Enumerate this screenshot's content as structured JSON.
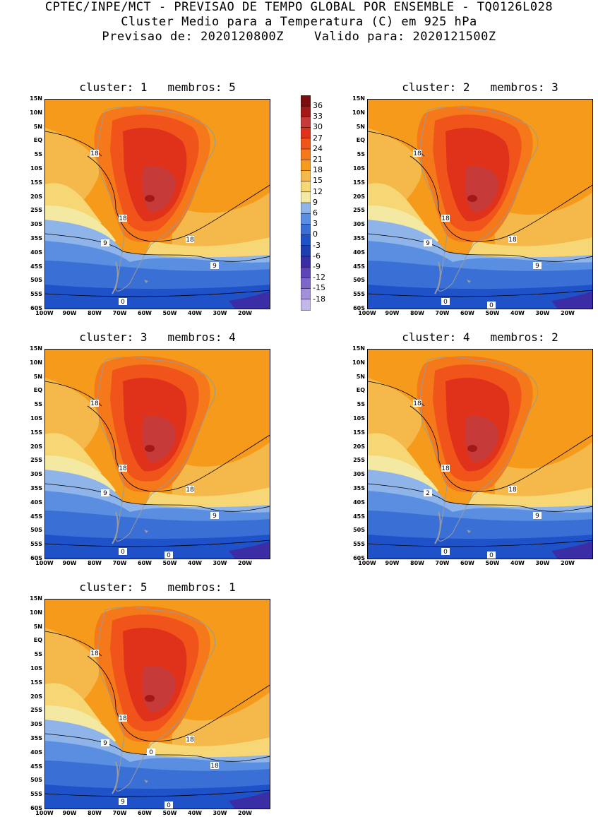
{
  "header": {
    "line1": "CPTEC/INPE/MCT - PREVISAO DE TEMPO GLOBAL POR ENSEMBLE - TQ0126L028",
    "line2": "Cluster Medio para a Temperatura (C) em 925 hPa",
    "line3": "Previsao de: 2020120800Z    Valido para: 2020121500Z"
  },
  "lat_ticks": [
    "15N",
    "10N",
    "5N",
    "EQ",
    "5S",
    "10S",
    "15S",
    "20S",
    "25S",
    "30S",
    "35S",
    "40S",
    "45S",
    "50S",
    "55S",
    "60S"
  ],
  "lon_ticks": [
    "100W",
    "90W",
    "80W",
    "70W",
    "60W",
    "50W",
    "40W",
    "30W",
    "20W"
  ],
  "colorbar": {
    "levels": [
      "36",
      "33",
      "30",
      "27",
      "24",
      "21",
      "18",
      "15",
      "12",
      "9",
      "6",
      "3",
      "0",
      "-3",
      "-6",
      "-9",
      "-12",
      "-15",
      "-18"
    ],
    "colors": [
      "#7a0d0d",
      "#a31919",
      "#c73a3a",
      "#e0321a",
      "#f0541a",
      "#f5781a",
      "#f59a1a",
      "#f5b84a",
      "#f7d775",
      "#f4e9a3",
      "#8fb4ea",
      "#5a8ee0",
      "#3a6fd6",
      "#1f52c8",
      "#1d3fb0",
      "#3b2da6",
      "#5b45b8",
      "#7c68c8",
      "#a190da",
      "#c3b6e8"
    ]
  },
  "panels": [
    {
      "id": "c1",
      "title": "cluster: 1   membros: 5",
      "labels": [
        "18",
        "18",
        "18",
        "9",
        "9",
        "0"
      ]
    },
    {
      "id": "c2",
      "title": "cluster: 2   membros: 3",
      "labels": [
        "18",
        "18",
        "18",
        "9",
        "9",
        "0",
        "0"
      ]
    },
    {
      "id": "c3",
      "title": "cluster: 3   membros: 4",
      "labels": [
        "18",
        "18",
        "18",
        "9",
        "9",
        "0",
        "0"
      ]
    },
    {
      "id": "c4",
      "title": "cluster: 4   membros: 2",
      "labels": [
        "18",
        "18",
        "18",
        "2",
        "9",
        "0",
        "0"
      ]
    },
    {
      "id": "c5",
      "title": "cluster: 5   membros: 1",
      "labels": [
        "18",
        "18",
        "18",
        "9",
        "18",
        "9",
        "0",
        "0"
      ]
    }
  ]
}
